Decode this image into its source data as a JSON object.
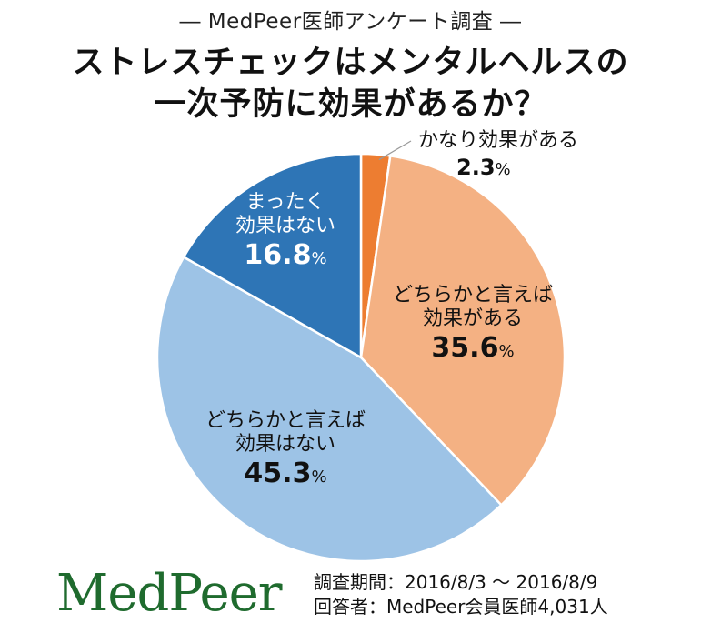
{
  "header": {
    "survey_label": "― MedPeer医師アンケート調査 ―",
    "title_line1": "ストレスチェックはメンタルヘルスの",
    "title_line2": "一次予防に効果があるか？"
  },
  "chart_data": {
    "type": "pie",
    "title": "ストレスチェックはメンタルヘルスの一次予防に効果があるか？",
    "start_angle_deg": 0,
    "direction": "clockwise",
    "slices": [
      {
        "label": "かなり効果がある",
        "value": 2.3,
        "pct_text": "2.3",
        "color": "#ED7D31"
      },
      {
        "label": "どちらかと言えば効果がある",
        "value": 35.6,
        "pct_text": "35.6",
        "color": "#F4B183"
      },
      {
        "label": "どちらかと言えば効果はない",
        "value": 45.3,
        "pct_text": "45.3",
        "color": "#9DC3E6"
      },
      {
        "label": "まったく効果はない",
        "value": 16.8,
        "pct_text": "16.8",
        "color": "#2E75B6"
      }
    ],
    "legend": "none"
  },
  "labels": {
    "slice0_line1": "かなり効果がある",
    "slice1_line1": "どちらかと言えば",
    "slice1_line2": "効果がある",
    "slice2_line1": "どちらかと言えば",
    "slice2_line2": "効果はない",
    "slice3_line1": "まったく",
    "slice3_line2": "効果はない",
    "pct_sign": "%"
  },
  "footer": {
    "logo_text": "MedPeer",
    "period": "調査期間：2016/8/3 ～ 2016/8/9",
    "respondents": "回答者：MedPeer会員医師4,031人"
  }
}
